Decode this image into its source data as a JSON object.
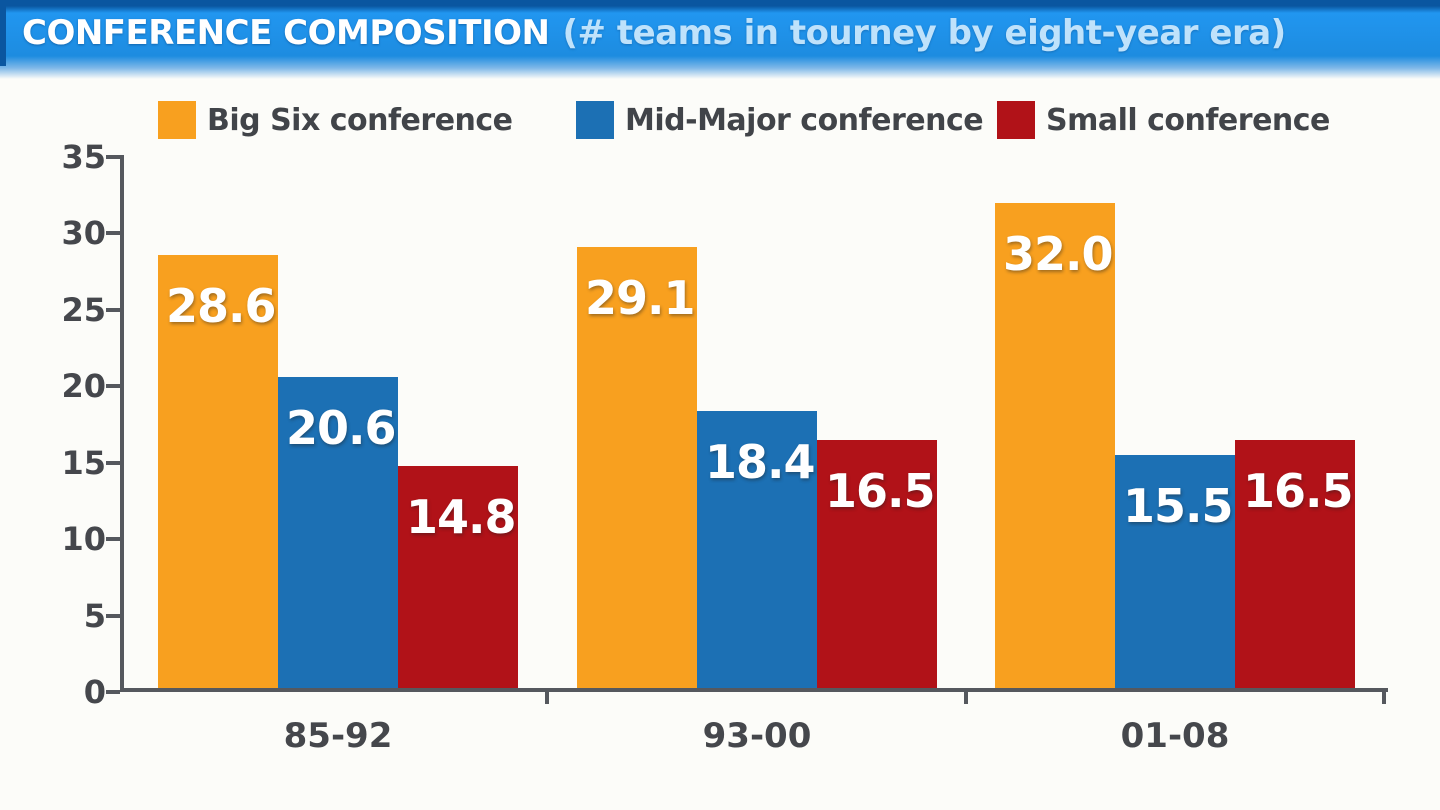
{
  "colors": {
    "title_bar_bg": "#1E91E8",
    "title_bar_border": "#0A56A0",
    "title_text": "#FFFFFF",
    "subtitle_text": "#BFE2FB",
    "axis": "#55585E",
    "tick_label": "#45474C",
    "value_label": "#FFFFFF"
  },
  "chart_data": {
    "type": "bar",
    "title": "CONFERENCE COMPOSITION",
    "subtitle": "(# teams in tourney by eight-year era)",
    "categories": [
      "85-92",
      "93-00",
      "01-08"
    ],
    "series": [
      {
        "name": "Big Six conference",
        "color": "#F8A01F",
        "values": [
          28.6,
          29.1,
          32.0
        ]
      },
      {
        "name": "Mid-Major conference",
        "color": "#1C70B4",
        "values": [
          20.6,
          18.4,
          15.5
        ]
      },
      {
        "name": "Small conference",
        "color": "#B11218",
        "values": [
          14.8,
          16.5,
          16.5
        ]
      }
    ],
    "ylim": [
      0,
      35
    ],
    "yticks": [
      0,
      5,
      10,
      15,
      20,
      25,
      30,
      35
    ],
    "grid": false,
    "legend_position": "top",
    "value_labels": true,
    "value_label_format": "1-decimal",
    "xlabel": "",
    "ylabel": ""
  }
}
